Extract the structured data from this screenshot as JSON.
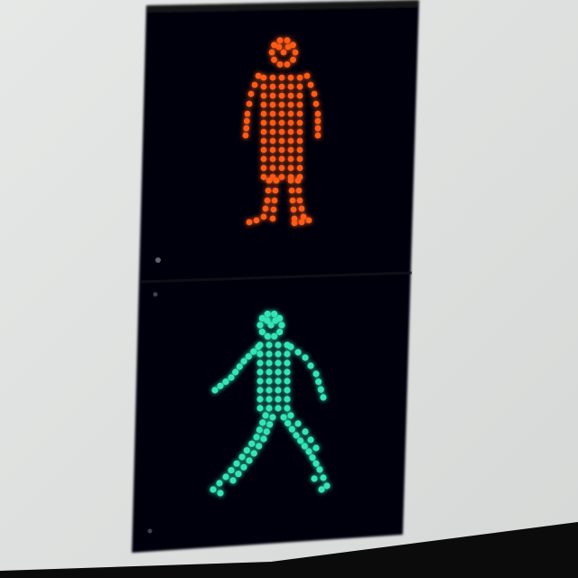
{
  "scene": {
    "colors": {
      "wall": "#e2e4e3",
      "wall_shadow": "#c9cbca",
      "floor": "#0b0b0c",
      "housing": "#060607",
      "housing_edge": "#1a1c20",
      "lens": "#0c0d10",
      "stop_led": "#ff5a14",
      "stop_glow": "#ff3a00",
      "walk_led": "#32e6b4",
      "walk_glow": "#10c090"
    },
    "signals": [
      {
        "name": "stop-signal",
        "meaning": "stop",
        "figure": "standing-person-icon"
      },
      {
        "name": "walk-signal",
        "meaning": "walk",
        "figure": "walking-person-icon"
      }
    ]
  }
}
